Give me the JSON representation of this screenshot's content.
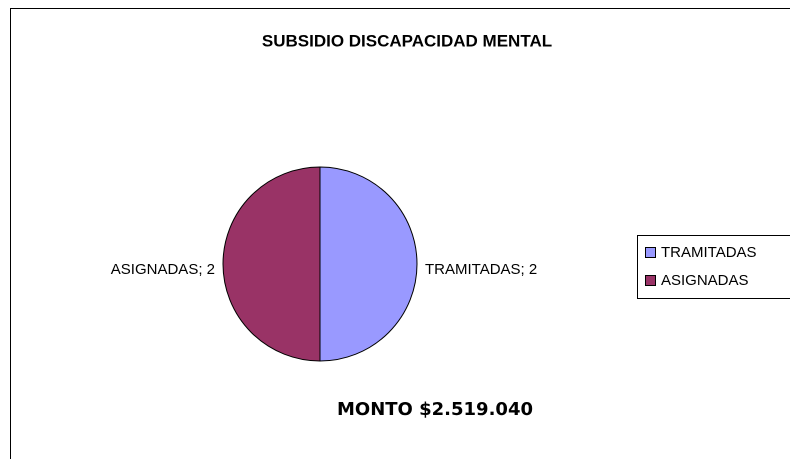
{
  "chart_data": {
    "type": "pie",
    "title": "SUBSIDIO DISCAPACIDAD MENTAL",
    "categories": [
      "TRAMITADAS",
      "ASIGNADAS"
    ],
    "values": [
      2,
      2
    ],
    "value_labels": [
      "TRAMITADAS; 2",
      "ASIGNADAS; 2"
    ],
    "colors": [
      "#9999ff",
      "#993366"
    ],
    "annotation": "MONTO $2.519.040",
    "legend": "right"
  }
}
